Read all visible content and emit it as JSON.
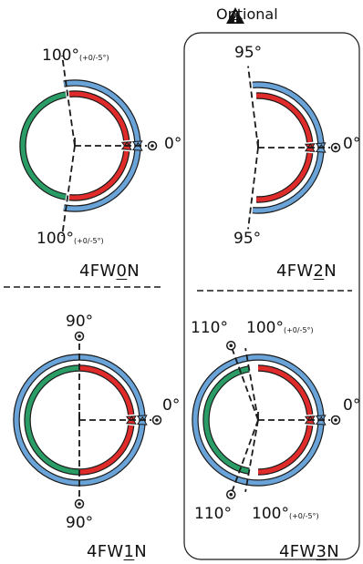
{
  "optional": {
    "label": "Optional",
    "icon": "warning-triangle-icon"
  },
  "colors": {
    "blue": "#6aa3d8",
    "red": "#e02b2b",
    "green": "#2a9d66",
    "outline": "#1a1a1a"
  },
  "panels": {
    "fw0n": {
      "model_pre": "4FW",
      "model_digit": "0",
      "model_post": "N",
      "label_top": "100°",
      "label_top_tol": "(+0/-5°)",
      "label_bottom": "100°",
      "label_bottom_tol": "(+0/-5°)",
      "label_right": "0°"
    },
    "fw2n": {
      "model_pre": "4FW",
      "model_digit": "2",
      "model_post": "N",
      "label_top": "95°",
      "label_bottom": "95°",
      "label_right": "0°"
    },
    "fw1n": {
      "model_pre": "4FW",
      "model_digit": "1",
      "model_post": "N",
      "label_top": "90°",
      "label_bottom": "90°",
      "label_right": "0°"
    },
    "fw3n": {
      "model_pre": "4FW",
      "model_digit": "3",
      "model_post": "N",
      "label_top_left": "110°",
      "label_top_right": "100°",
      "label_top_right_tol": "(+0/-5°)",
      "label_bottom_left": "110°",
      "label_bottom_right": "100°",
      "label_bottom_right_tol": "(+0/-5°)",
      "label_right": "0°"
    }
  }
}
